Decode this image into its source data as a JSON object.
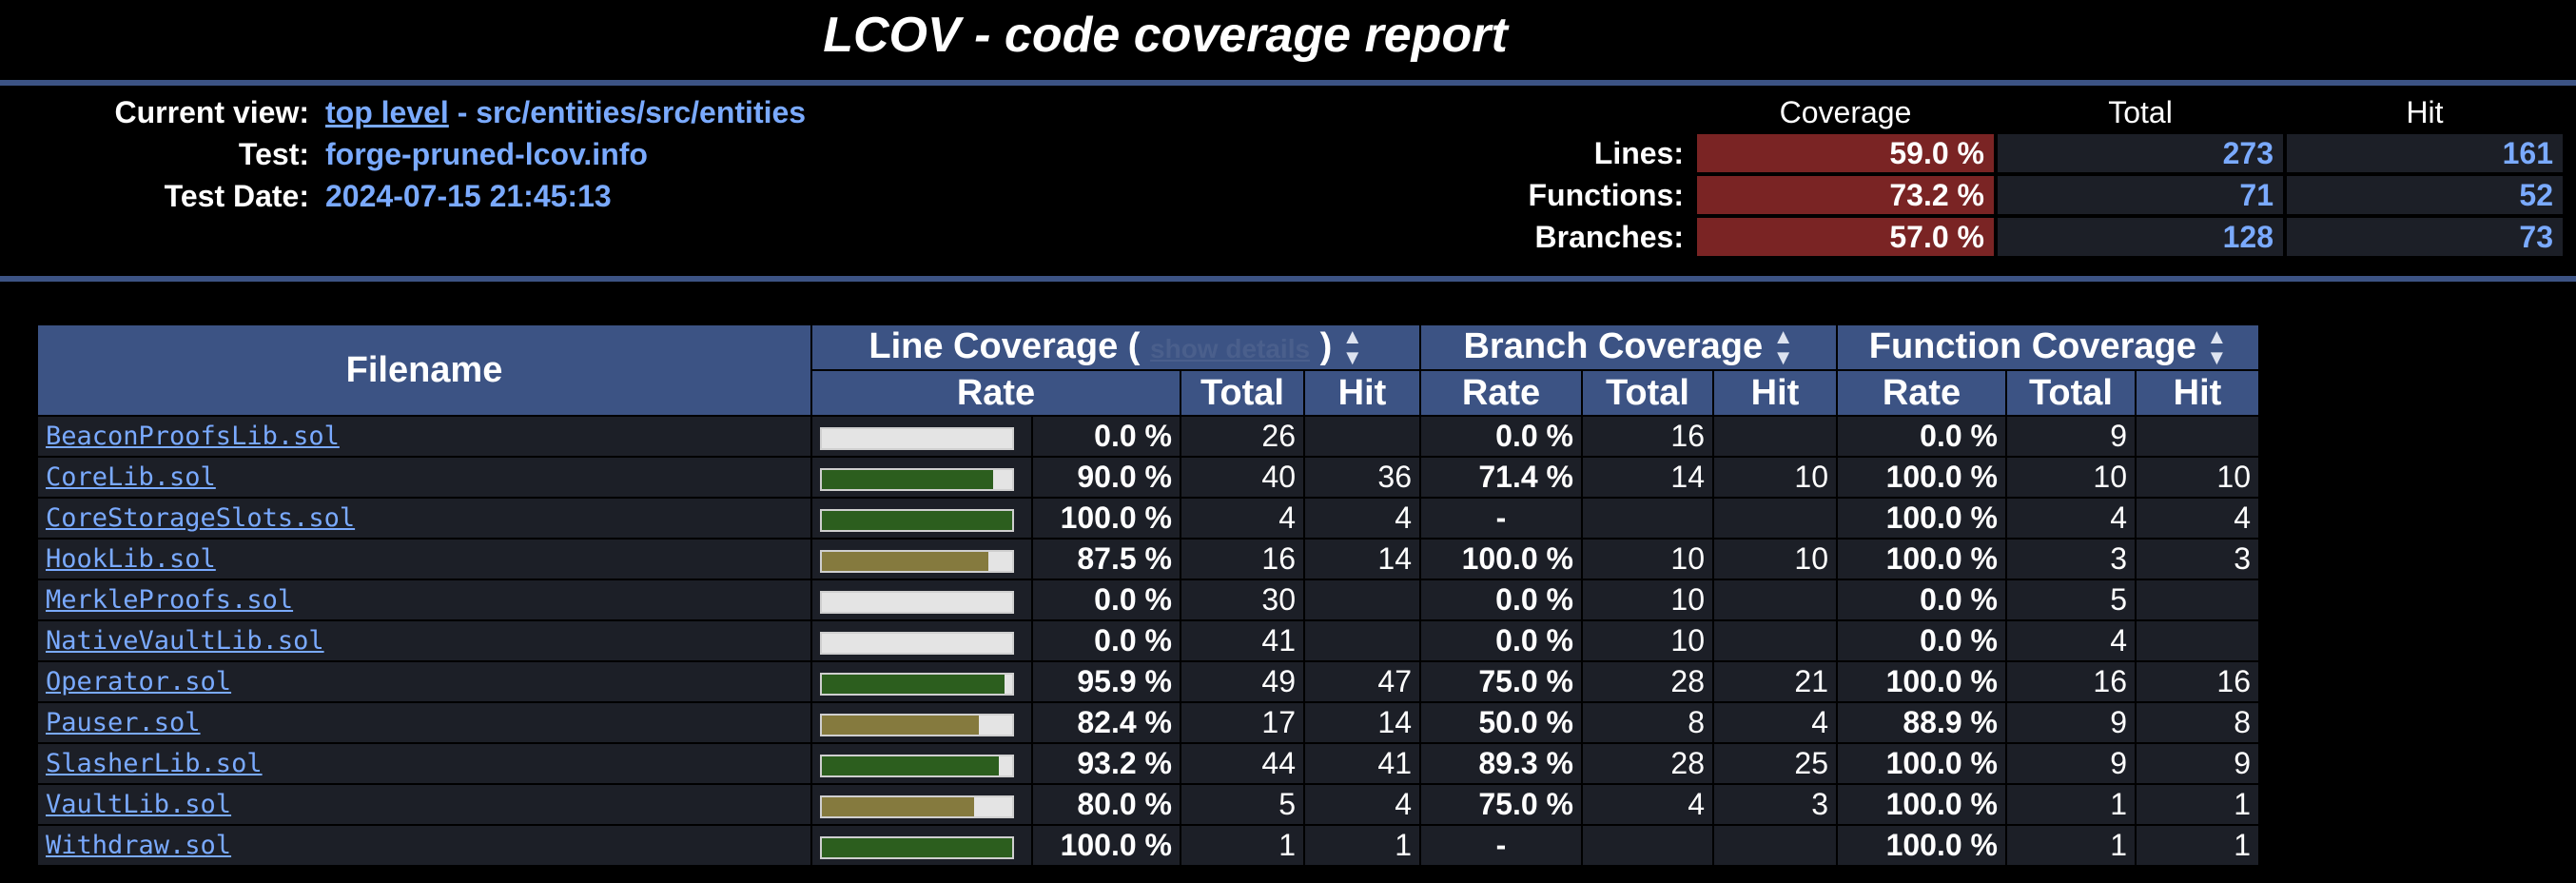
{
  "header": {
    "title": "LCOV - code coverage report"
  },
  "info": {
    "current_view_label": "Current view:",
    "current_view_link": "top level",
    "current_view_path": " - src/entities/src/entities",
    "test_label": "Test:",
    "test_value": "forge-pruned-lcov.info",
    "date_label": "Test Date:",
    "date_value": "2024-07-15 21:45:13"
  },
  "summary": {
    "headers": {
      "coverage": "Coverage",
      "total": "Total",
      "hit": "Hit"
    },
    "rows": [
      {
        "label": "Lines:",
        "coverage": "59.0 %",
        "total": "273",
        "hit": "161",
        "level": "red"
      },
      {
        "label": "Functions:",
        "coverage": "73.2 %",
        "total": "71",
        "hit": "52",
        "level": "red"
      },
      {
        "label": "Branches:",
        "coverage": "57.0 %",
        "total": "128",
        "hit": "73",
        "level": "red"
      }
    ]
  },
  "table": {
    "headers": {
      "filename": "Filename",
      "line_coverage_prefix": "Line Coverage (",
      "show_details": "show details",
      "line_coverage_suffix": ")",
      "branch_coverage": "Branch Coverage",
      "function_coverage": "Function Coverage",
      "rate": "Rate",
      "total": "Total",
      "hit": "Hit"
    },
    "rows": [
      {
        "file": "BeaconProofsLib.sol",
        "line_fraction": 0.0,
        "line_rate": "0.0 %",
        "line_level": "red",
        "line_total": "26",
        "line_hit": "",
        "branch_rate": "0.0 %",
        "branch_level": "red",
        "branch_total": "16",
        "branch_hit": "",
        "func_rate": "0.0 %",
        "func_level": "red",
        "func_total": "9",
        "func_hit": ""
      },
      {
        "file": "CoreLib.sol",
        "line_fraction": 0.9,
        "line_rate": "90.0 %",
        "line_level": "green",
        "line_total": "40",
        "line_hit": "36",
        "branch_rate": "71.4 %",
        "branch_level": "red",
        "branch_total": "14",
        "branch_hit": "10",
        "func_rate": "100.0 %",
        "func_level": "green",
        "func_total": "10",
        "func_hit": "10"
      },
      {
        "file": "CoreStorageSlots.sol",
        "line_fraction": 1.0,
        "line_rate": "100.0 %",
        "line_level": "green",
        "line_total": "4",
        "line_hit": "4",
        "branch_rate": "-",
        "branch_level": "green",
        "branch_total": "",
        "branch_hit": "",
        "func_rate": "100.0 %",
        "func_level": "green",
        "func_total": "4",
        "func_hit": "4"
      },
      {
        "file": "HookLib.sol",
        "line_fraction": 0.875,
        "line_rate": "87.5 %",
        "line_level": "yellow",
        "line_total": "16",
        "line_hit": "14",
        "branch_rate": "100.0 %",
        "branch_level": "green",
        "branch_total": "10",
        "branch_hit": "10",
        "func_rate": "100.0 %",
        "func_level": "green",
        "func_total": "3",
        "func_hit": "3"
      },
      {
        "file": "MerkleProofs.sol",
        "line_fraction": 0.0,
        "line_rate": "0.0 %",
        "line_level": "red",
        "line_total": "30",
        "line_hit": "",
        "branch_rate": "0.0 %",
        "branch_level": "red",
        "branch_total": "10",
        "branch_hit": "",
        "func_rate": "0.0 %",
        "func_level": "red",
        "func_total": "5",
        "func_hit": ""
      },
      {
        "file": "NativeVaultLib.sol",
        "line_fraction": 0.0,
        "line_rate": "0.0 %",
        "line_level": "red",
        "line_total": "41",
        "line_hit": "",
        "branch_rate": "0.0 %",
        "branch_level": "red",
        "branch_total": "10",
        "branch_hit": "",
        "func_rate": "0.0 %",
        "func_level": "red",
        "func_total": "4",
        "func_hit": ""
      },
      {
        "file": "Operator.sol",
        "line_fraction": 0.959,
        "line_rate": "95.9 %",
        "line_level": "green",
        "line_total": "49",
        "line_hit": "47",
        "branch_rate": "75.0 %",
        "branch_level": "yellow",
        "branch_total": "28",
        "branch_hit": "21",
        "func_rate": "100.0 %",
        "func_level": "green",
        "func_total": "16",
        "func_hit": "16"
      },
      {
        "file": "Pauser.sol",
        "line_fraction": 0.824,
        "line_rate": "82.4 %",
        "line_level": "yellow",
        "line_total": "17",
        "line_hit": "14",
        "branch_rate": "50.0 %",
        "branch_level": "red",
        "branch_total": "8",
        "branch_hit": "4",
        "func_rate": "88.9 %",
        "func_level": "yellow",
        "func_total": "9",
        "func_hit": "8"
      },
      {
        "file": "SlasherLib.sol",
        "line_fraction": 0.932,
        "line_rate": "93.2 %",
        "line_level": "green",
        "line_total": "44",
        "line_hit": "41",
        "branch_rate": "89.3 %",
        "branch_level": "yellow",
        "branch_total": "28",
        "branch_hit": "25",
        "func_rate": "100.0 %",
        "func_level": "green",
        "func_total": "9",
        "func_hit": "9"
      },
      {
        "file": "VaultLib.sol",
        "line_fraction": 0.8,
        "line_rate": "80.0 %",
        "line_level": "yellow",
        "line_total": "5",
        "line_hit": "4",
        "branch_rate": "75.0 %",
        "branch_level": "yellow",
        "branch_total": "4",
        "branch_hit": "3",
        "func_rate": "100.0 %",
        "func_level": "green",
        "func_total": "1",
        "func_hit": "1"
      },
      {
        "file": "Withdraw.sol",
        "line_fraction": 1.0,
        "line_rate": "100.0 %",
        "line_level": "green",
        "line_total": "1",
        "line_hit": "1",
        "branch_rate": "-",
        "branch_level": "green",
        "branch_total": "",
        "branch_hit": "",
        "func_rate": "100.0 %",
        "func_level": "green",
        "func_total": "1",
        "func_hit": "1"
      }
    ]
  },
  "colors": {
    "red": "#7a2424",
    "green": "#2c5e1e",
    "yellow": "#857a3e",
    "header_bg": "#3c5384",
    "link": "#7aaaff"
  }
}
